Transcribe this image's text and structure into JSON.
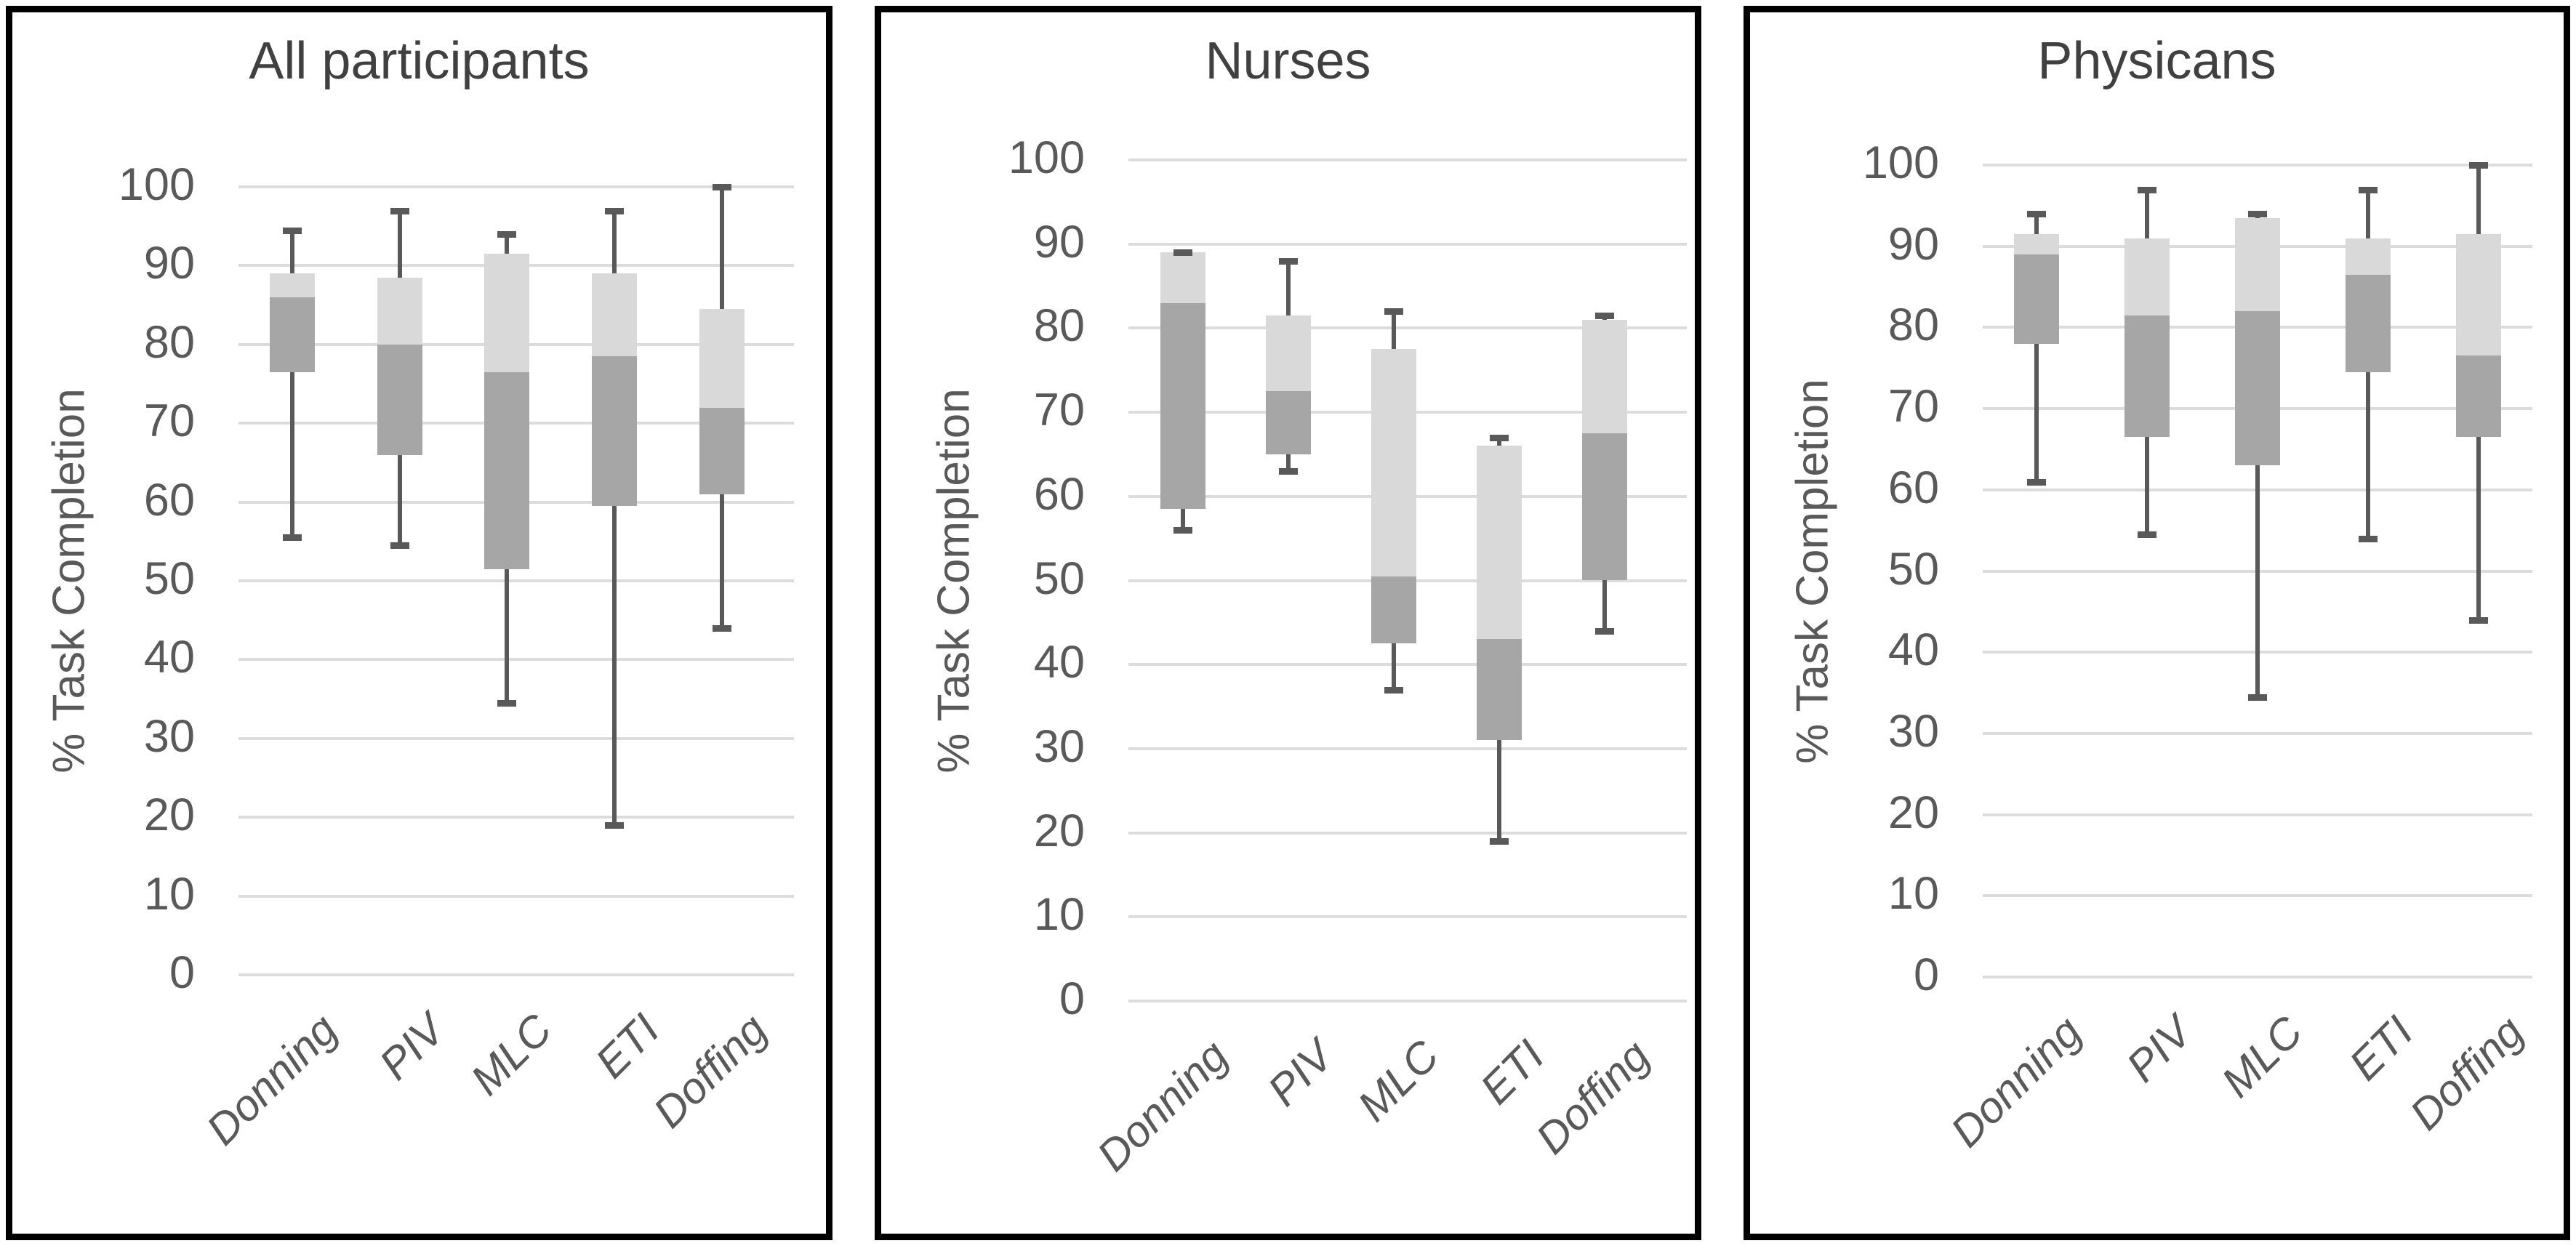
{
  "page": {
    "background": "#ffffff"
  },
  "colors": {
    "panel_border": "#000000",
    "gridline": "#dcdcdc",
    "box_upper_quartile": "#d9d9d9",
    "box_lower_quartile": "#a6a6a6",
    "whisker": "#595959",
    "title_text": "#404040",
    "tick_text": "#595959"
  },
  "chart_data": [
    {
      "type": "box",
      "title": "All participants",
      "ylabel": "% Task Completion",
      "ylim": [
        0,
        100
      ],
      "yticks": [
        100,
        90,
        80,
        70,
        60,
        50,
        40,
        30,
        20,
        10,
        0
      ],
      "grid": true,
      "legend": false,
      "categories": [
        "Donning",
        "PIV",
        "MLC",
        "ETI",
        "Doffing"
      ],
      "series": [
        {
          "category": "Donning",
          "min": 55.5,
          "q1": 76.5,
          "median": 86,
          "q3": 89,
          "max": 94.5
        },
        {
          "category": "PIV",
          "min": 54.5,
          "q1": 66,
          "median": 80,
          "q3": 88.5,
          "max": 97
        },
        {
          "category": "MLC",
          "min": 34.5,
          "q1": 51.5,
          "median": 76.5,
          "q3": 91.5,
          "max": 94
        },
        {
          "category": "ETI",
          "min": 19,
          "q1": 59.5,
          "median": 78.5,
          "q3": 89,
          "max": 97
        },
        {
          "category": "Doffing",
          "min": 44,
          "q1": 61,
          "median": 72,
          "q3": 84.5,
          "max": 100
        }
      ]
    },
    {
      "type": "box",
      "title": "Nurses",
      "ylabel": "% Task Completion",
      "ylim": [
        0,
        100
      ],
      "yticks": [
        100,
        90,
        80,
        70,
        60,
        50,
        40,
        30,
        20,
        10,
        0
      ],
      "grid": true,
      "legend": false,
      "categories": [
        "Donning",
        "PIV",
        "MLC",
        "ETI",
        "Doffing"
      ],
      "series": [
        {
          "category": "Donning",
          "min": 56,
          "q1": 58.5,
          "median": 83,
          "q3": 89,
          "max": 89
        },
        {
          "category": "PIV",
          "min": 63,
          "q1": 65,
          "median": 72.5,
          "q3": 81.5,
          "max": 88
        },
        {
          "category": "MLC",
          "min": 37,
          "q1": 42.5,
          "median": 50.5,
          "q3": 77.5,
          "max": 82
        },
        {
          "category": "ETI",
          "min": 19,
          "q1": 31,
          "median": 43,
          "q3": 66,
          "max": 67
        },
        {
          "category": "Doffing",
          "min": 44,
          "q1": 50,
          "median": 67.5,
          "q3": 81,
          "max": 81.5
        }
      ]
    },
    {
      "type": "box",
      "title": "Physicans",
      "ylabel": "% Task Completion",
      "ylim": [
        0,
        100
      ],
      "yticks": [
        100,
        90,
        80,
        70,
        60,
        50,
        40,
        30,
        20,
        10,
        0
      ],
      "grid": true,
      "legend": false,
      "categories": [
        "Donning",
        "PIV",
        "MLC",
        "ETI",
        "Doffing"
      ],
      "series": [
        {
          "category": "Donning",
          "min": 61,
          "q1": 78,
          "median": 89,
          "q3": 91.5,
          "max": 94
        },
        {
          "category": "PIV",
          "min": 54.5,
          "q1": 66.5,
          "median": 81.5,
          "q3": 91,
          "max": 97
        },
        {
          "category": "MLC",
          "min": 34.5,
          "q1": 63,
          "median": 82,
          "q3": 93.5,
          "max": 94
        },
        {
          "category": "ETI",
          "min": 54,
          "q1": 74.5,
          "median": 86.5,
          "q3": 91,
          "max": 97
        },
        {
          "category": "Doffing",
          "min": 44,
          "q1": 66.5,
          "median": 76.5,
          "q3": 91.5,
          "max": 100
        }
      ]
    }
  ]
}
